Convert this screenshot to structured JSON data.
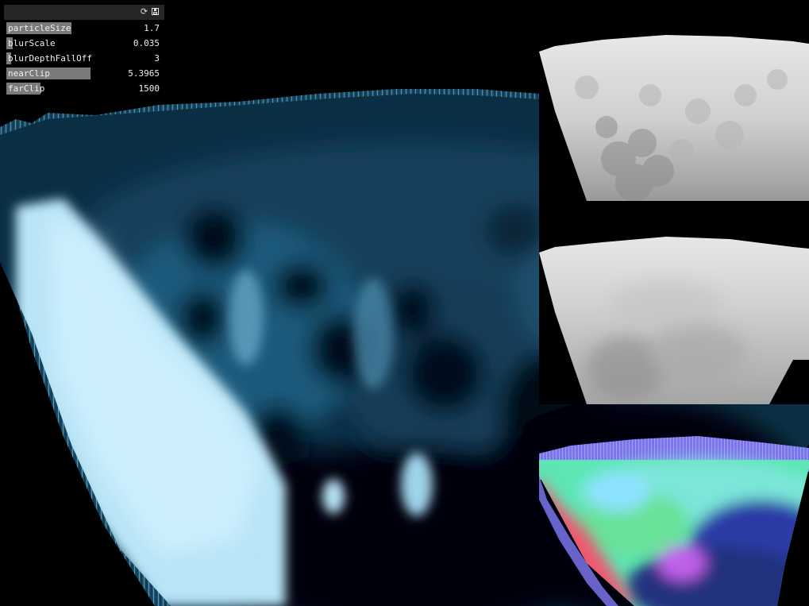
{
  "gui": {
    "header_icons": {
      "reload": "reload-icon",
      "save": "save-icon"
    },
    "sliders": [
      {
        "id": "particle-size",
        "label": "particleSize",
        "value": "1.7",
        "fill_fraction": 0.42
      },
      {
        "id": "blur-scale",
        "label": "blurScale",
        "value": "0.035",
        "fill_fraction": 0.04
      },
      {
        "id": "blur-depth-falloff",
        "label": "blurDepthFallOff",
        "value": "3",
        "fill_fraction": 0.03
      },
      {
        "id": "near-clip",
        "label": "nearClip",
        "value": "5.3965",
        "fill_fraction": 0.54
      },
      {
        "id": "far-clip",
        "label": "farClip",
        "value": "1500",
        "fill_fraction": 0.22
      }
    ],
    "colors": {
      "panel_bg": "#000000",
      "header_bg": "#262626",
      "slider_fill": "#7a7a7a",
      "text": "#f0f0f0"
    }
  },
  "render": {
    "colors": {
      "fluid_dark": "#03131d",
      "fluid_mid": "#1d5a7a",
      "fluid_light": "#c9f0ff",
      "edge": "#1e5470"
    },
    "previews": [
      "depth-buffer",
      "blurred-depth",
      "normals"
    ]
  }
}
